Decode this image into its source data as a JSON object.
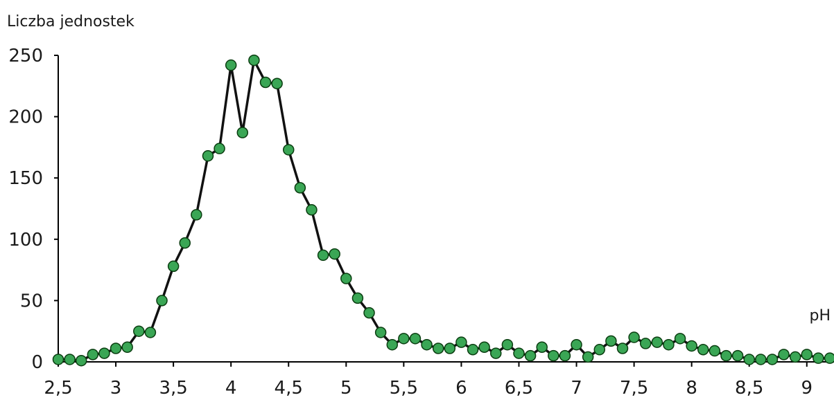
{
  "chart_data": {
    "type": "line",
    "title": "",
    "ylabel": "Liczba jednostek",
    "xlabel": "pH",
    "xlim": [
      2.5,
      9.2
    ],
    "ylim": [
      0,
      250
    ],
    "xticks": [
      2.5,
      3,
      3.5,
      4,
      4.5,
      5,
      5.5,
      6,
      6.5,
      7,
      7.5,
      8,
      8.5,
      9
    ],
    "xtick_labels": [
      "2,5",
      "3",
      "3,5",
      "4",
      "4,5",
      "5",
      "5,5",
      "6",
      "6,5",
      "7",
      "7,5",
      "8",
      "8,5",
      "9"
    ],
    "yticks": [
      0,
      50,
      100,
      150,
      200,
      250
    ],
    "ytick_labels": [
      "0",
      "50",
      "100",
      "150",
      "200",
      "250"
    ],
    "grid": false,
    "marker_color": "#3aa655",
    "line_color": "#111111",
    "series": [
      {
        "x": [
          2.5,
          2.6,
          2.7,
          2.8,
          2.9,
          3.0,
          3.1,
          3.2,
          3.3,
          3.4,
          3.5,
          3.6,
          3.7,
          3.8,
          3.9,
          4.0,
          4.1,
          4.2,
          4.3,
          4.4,
          4.5,
          4.6,
          4.7,
          4.8,
          4.9,
          5.0,
          5.1,
          5.2,
          5.3,
          5.4,
          5.5,
          5.6,
          5.7,
          5.8,
          5.9,
          6.0,
          6.1,
          6.2,
          6.3,
          6.4,
          6.5,
          6.6,
          6.7,
          6.8,
          6.9,
          7.0,
          7.1,
          7.2,
          7.3,
          7.4,
          7.5,
          7.6,
          7.7,
          7.8,
          7.9,
          8.0,
          8.1,
          8.2,
          8.3,
          8.4,
          8.5,
          8.6,
          8.7,
          8.8,
          8.9,
          9.0,
          9.1,
          9.2
        ],
        "values": [
          2,
          2,
          1,
          6,
          7,
          11,
          12,
          25,
          24,
          50,
          78,
          97,
          120,
          168,
          174,
          242,
          187,
          246,
          228,
          227,
          173,
          142,
          124,
          87,
          88,
          68,
          52,
          40,
          24,
          14,
          19,
          19,
          14,
          11,
          11,
          16,
          10,
          12,
          7,
          14,
          7,
          5,
          12,
          5,
          5,
          14,
          4,
          10,
          17,
          11,
          20,
          15,
          16,
          14,
          19,
          13,
          10,
          9,
          5,
          5,
          2,
          2,
          2,
          6,
          4,
          6,
          3,
          3
        ]
      }
    ]
  }
}
